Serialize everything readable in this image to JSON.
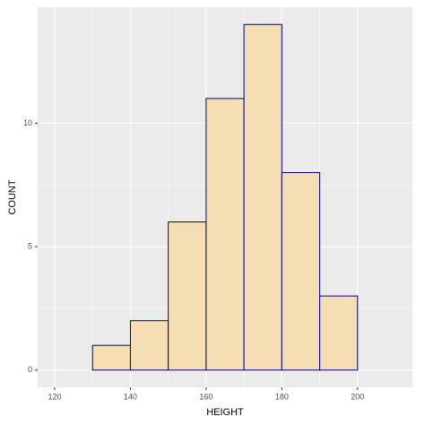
{
  "chart_data": {
    "type": "histogram",
    "x_label": "HEIGHT",
    "y_label": "COUNT",
    "bins": [
      120,
      130,
      140,
      150,
      160,
      170,
      180,
      190,
      200,
      210
    ],
    "values": [
      0,
      1,
      2,
      6,
      11,
      14,
      8,
      3,
      0
    ],
    "fill": "#f5deb3",
    "edge_color": "#00008b",
    "xlim": [
      115.5,
      214.5
    ],
    "xticks": [
      120,
      140,
      160,
      180,
      200
    ],
    "ylim": [
      -0.7,
      14.7
    ],
    "yticks": [
      0,
      5,
      10
    ],
    "grid": true
  }
}
